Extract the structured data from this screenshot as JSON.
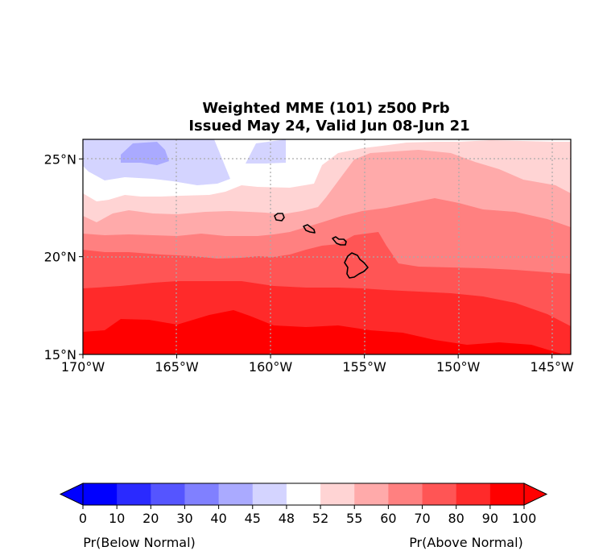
{
  "title": {
    "line1": "Weighted MME (101) z500 Prb",
    "line2": "Issued May 24, Valid Jun 08-Jun 21"
  },
  "map": {
    "region": "Hawaii",
    "lon_range": [
      -170,
      -144
    ],
    "lat_range": [
      15,
      26
    ],
    "grid": true,
    "grid_style": "dotted",
    "lat_ticks": [
      {
        "value": 25,
        "label": "25°N"
      },
      {
        "value": 20,
        "label": "20°N"
      },
      {
        "value": 15,
        "label": "15°N"
      }
    ],
    "lon_ticks": [
      {
        "value": -170,
        "label": "170°W"
      },
      {
        "value": -165,
        "label": "165°W"
      },
      {
        "value": -160,
        "label": "160°W"
      },
      {
        "value": -155,
        "label": "155°W"
      },
      {
        "value": -150,
        "label": "150°W"
      },
      {
        "value": -145,
        "label": "145°W"
      }
    ],
    "islands": [
      "Kauai",
      "Oahu",
      "Maui",
      "Hawaii"
    ]
  },
  "colorbar": {
    "levels": [
      "0",
      "10",
      "20",
      "30",
      "40",
      "45",
      "48",
      "52",
      "55",
      "60",
      "70",
      "80",
      "90",
      "100"
    ],
    "colors": [
      "#0000ff",
      "#2a2aff",
      "#5555ff",
      "#8080ff",
      "#aaaaff",
      "#d4d4ff",
      "#ffffff",
      "#ffd4d4",
      "#ffaaaa",
      "#ff8080",
      "#ff5555",
      "#ff2a2a",
      "#ff0000"
    ],
    "extend": "both",
    "left_label": "Pr(Below Normal)",
    "right_label": "Pr(Above Normal)"
  }
}
